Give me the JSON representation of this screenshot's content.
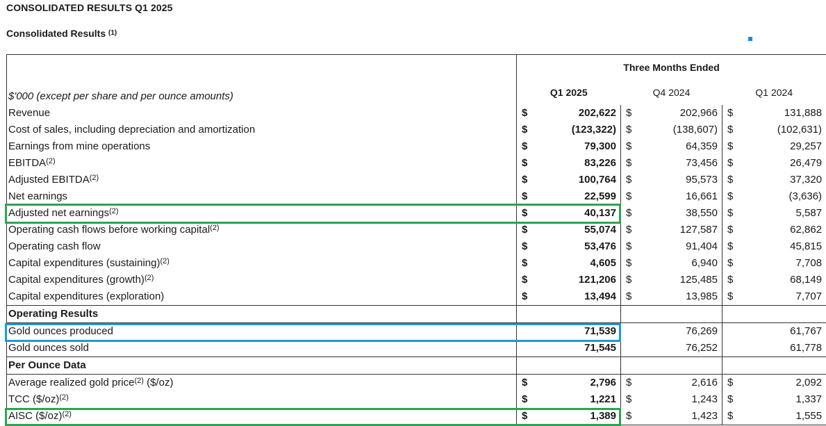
{
  "page_title": "CONSOLIDATED RESULTS Q1 2025",
  "section_title": "Consolidated Results",
  "section_note": "(1)",
  "header": {
    "group_label": "Three Months Ended",
    "unit_label": "$'000 (except per share and per ounce amounts)",
    "periods": [
      "Q1 2025",
      "Q4 2024",
      "Q1 2024"
    ]
  },
  "financial_rows": [
    {
      "label": "Revenue",
      "note": "",
      "cur": "$",
      "v1": "202,622",
      "v2": "202,966",
      "v3": "131,888"
    },
    {
      "label": "Cost of sales, including depreciation and amortization",
      "note": "",
      "cur": "$",
      "v1": "(123,322)",
      "v2": "(138,607)",
      "v3": "(102,631)"
    },
    {
      "label": "Earnings from mine operations",
      "note": "",
      "cur": "$",
      "v1": "79,300",
      "v2": "64,359",
      "v3": "29,257"
    },
    {
      "label": "EBITDA",
      "note": "(2)",
      "cur": "$",
      "v1": "83,226",
      "v2": "73,456",
      "v3": "26,479"
    },
    {
      "label": "Adjusted EBITDA",
      "note": "(2)",
      "cur": "$",
      "v1": "100,764",
      "v2": "95,573",
      "v3": "37,320"
    },
    {
      "label": "Net earnings",
      "note": "",
      "cur": "$",
      "v1": "22,599",
      "v2": "16,661",
      "v3": "(3,636)"
    },
    {
      "label": "Adjusted net earnings",
      "note": "(2)",
      "cur": "$",
      "v1": "40,137",
      "v2": "38,550",
      "v3": "5,587"
    },
    {
      "label": "Operating cash flows before working capital",
      "note": "(2)",
      "cur": "$",
      "v1": "55,074",
      "v2": "127,587",
      "v3": "62,862"
    },
    {
      "label": "Operating cash flow",
      "note": "",
      "cur": "$",
      "v1": "53,476",
      "v2": "91,404",
      "v3": "45,815"
    },
    {
      "label": "Capital expenditures (sustaining)",
      "note": "(2)",
      "cur": "$",
      "v1": "4,605",
      "v2": "6,940",
      "v3": "7,708"
    },
    {
      "label": "Capital expenditures (growth)",
      "note": "(2)",
      "cur": "$",
      "v1": "121,206",
      "v2": "125,485",
      "v3": "68,149"
    },
    {
      "label": "Capital expenditures (exploration)",
      "note": "",
      "cur": "$",
      "v1": "13,494",
      "v2": "13,985",
      "v3": "7,707"
    }
  ],
  "operating_results": {
    "label": "Operating Results",
    "rows": [
      {
        "label": "Gold ounces produced",
        "v1": "71,539",
        "v2": "76,269",
        "v3": "61,767"
      },
      {
        "label": "Gold ounces sold",
        "v1": "71,545",
        "v2": "76,252",
        "v3": "61,778"
      }
    ]
  },
  "per_ounce": {
    "label": "Per Ounce Data",
    "rows": [
      {
        "label": "Average realized gold price",
        "note": "(2)",
        "suffix": " ($/oz)",
        "cur": "$",
        "v1": "2,796",
        "v2": "2,616",
        "v3": "2,092"
      },
      {
        "label": "TCC ($/oz)",
        "note": "(2)",
        "suffix": "",
        "cur": "$",
        "v1": "1,221",
        "v2": "1,243",
        "v3": "1,337"
      },
      {
        "label": "AISC ($/oz)",
        "note": "(2)",
        "suffix": "",
        "cur": "$",
        "v1": "1,389",
        "v2": "1,423",
        "v3": "1,555"
      }
    ]
  },
  "highlight_colors": {
    "green": "#2ea44f",
    "blue": "#1a9bd7"
  }
}
